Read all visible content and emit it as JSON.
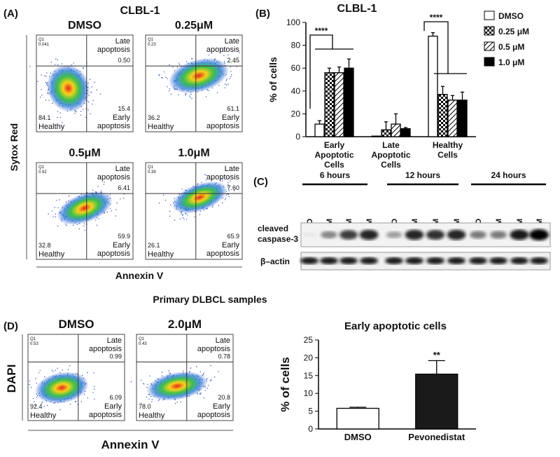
{
  "panel_labels": [
    "(A)",
    "(B)",
    "(C)",
    "(D)"
  ],
  "quadrant_labels": {
    "q1": "Q1",
    "late": "Late apoptosis",
    "early": "Early apoptosis",
    "healthy": "Healthy"
  },
  "flow_a": {
    "title": "CLBL-1",
    "y_label": "Sytox Red",
    "x_label": "Annexin V",
    "plots": [
      {
        "title": "DMSO",
        "q1": "0.041",
        "late": "0.50",
        "early": "15.4",
        "healthy": "84.1"
      },
      {
        "title": "0.25μM",
        "q1": "0.23",
        "late": "2.45",
        "early": "61.1",
        "healthy": "36.2"
      },
      {
        "title": "0.5μM",
        "q1": "0.92",
        "late": "6.41",
        "early": "59.9",
        "healthy": "32.8"
      },
      {
        "title": "1.0μM",
        "q1": "0.39",
        "late": "7.60",
        "early": "65.9",
        "healthy": "26.1"
      }
    ]
  },
  "blot": {
    "times": [
      "6 hours",
      "12 hours",
      "24 hours"
    ],
    "lanes": [
      "DMSO",
      "0.1μM",
      "0.32μM",
      "0.7μM"
    ],
    "rows": [
      "cleaved caspase-3",
      "β–actin"
    ]
  },
  "flow_d": {
    "title": "Primary DLBCL samples",
    "y_label": "DAPI",
    "x_label": "Annexin V",
    "plots": [
      {
        "title": "DMSO",
        "q1": "0.53",
        "late": "0.99",
        "early": "6.09",
        "healthy": "92.4"
      },
      {
        "title": "2.0μM",
        "q1": "0.43",
        "late": "0.78",
        "early": "20.8",
        "healthy": "78.0"
      }
    ]
  },
  "chart_data": [
    {
      "type": "bar",
      "title": "CLBL-1",
      "y_label": "% of cells",
      "categories": [
        "Early Apoptotic Cells",
        "Late Apoptotic Cells",
        "Healthy Cells"
      ],
      "series": [
        {
          "name": "DMSO",
          "color": "#ffffff",
          "pattern": "solid",
          "values": [
            11,
            0.5,
            88
          ],
          "errors": [
            3,
            0,
            3
          ]
        },
        {
          "name": "0.25 μM",
          "color": "#000000",
          "pattern": "checker",
          "values": [
            56,
            6,
            37
          ],
          "errors": [
            4,
            7,
            7
          ]
        },
        {
          "name": "0.5 μM",
          "color": "#000000",
          "pattern": "hatch",
          "values": [
            56,
            11,
            32
          ],
          "errors": [
            5,
            9,
            4
          ]
        },
        {
          "name": "1.0 μM",
          "color": "#000000",
          "pattern": "solid",
          "values": [
            60,
            7,
            32
          ],
          "errors": [
            8,
            1,
            7
          ]
        }
      ],
      "ylim": [
        0,
        100
      ],
      "yticks": [
        0,
        20,
        40,
        60,
        80,
        100
      ],
      "grid": false,
      "legend": "right",
      "annotations": [
        "****",
        "****"
      ]
    },
    {
      "type": "bar",
      "title": "Early apoptotic cells",
      "y_label": "% of cells",
      "categories": [
        "DMSO",
        "Pevonedistat"
      ],
      "series": [
        {
          "name": "Early apoptotic cells",
          "colors": [
            "#ffffff",
            "#1a1a1a"
          ],
          "values": [
            5.8,
            15.4
          ],
          "errors": [
            0.3,
            3.8
          ]
        }
      ],
      "ylim": [
        0,
        25
      ],
      "yticks": [
        0,
        5,
        10,
        15,
        20,
        25
      ],
      "grid": false,
      "annotations": [
        "**"
      ]
    }
  ]
}
